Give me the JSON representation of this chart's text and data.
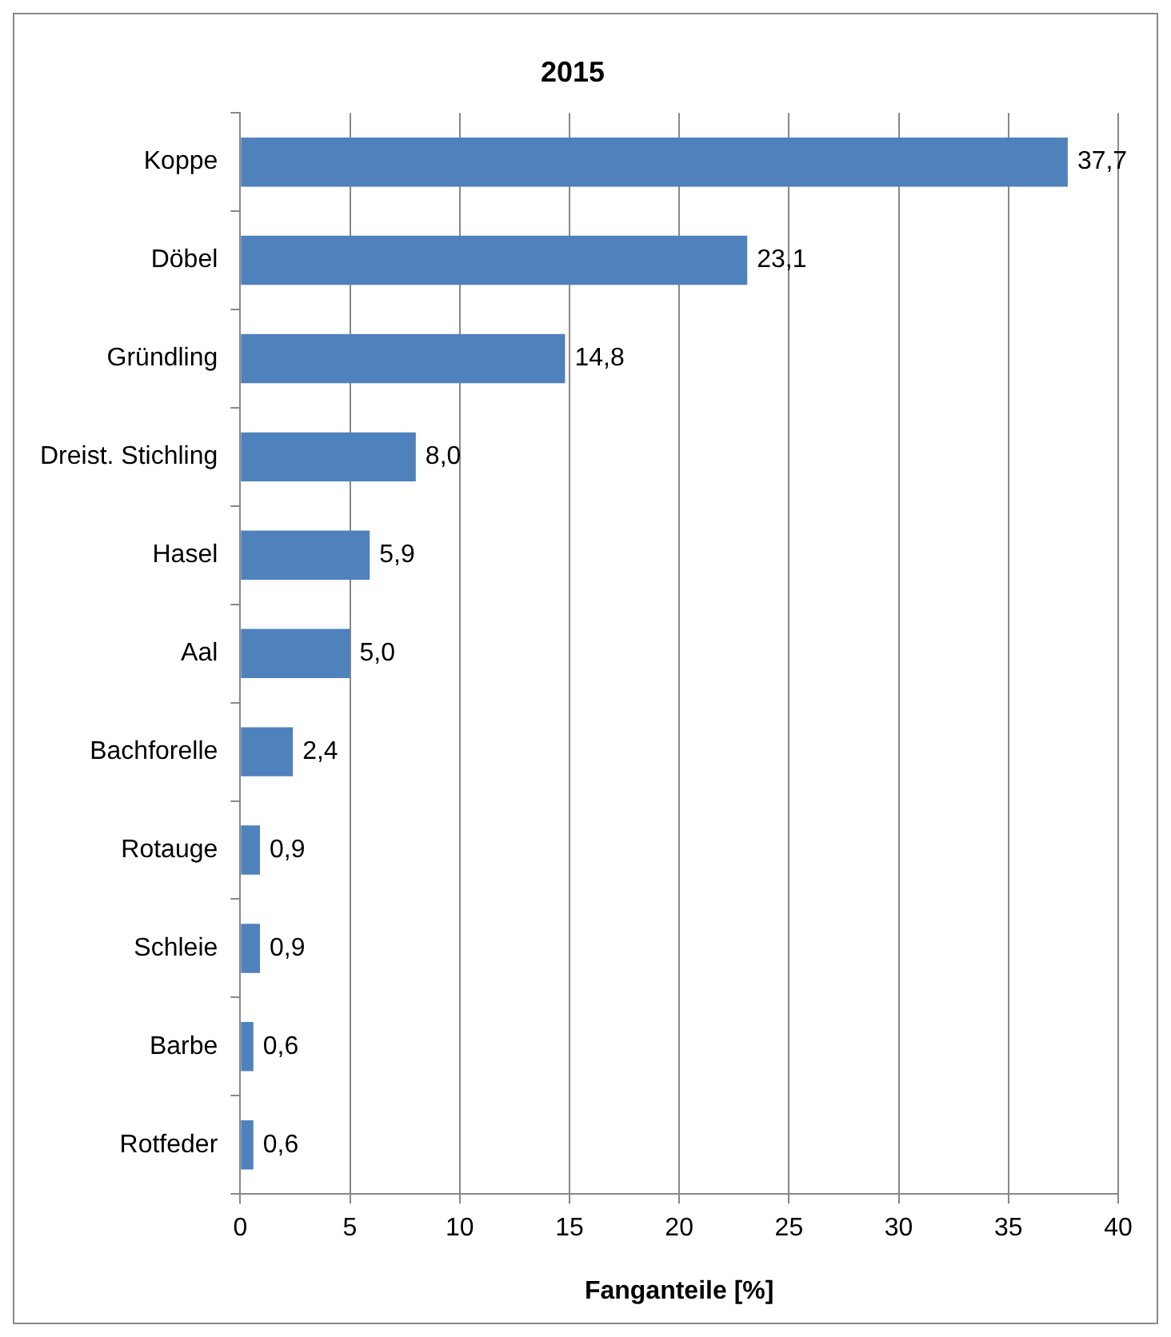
{
  "chart_data": {
    "type": "bar",
    "orientation": "horizontal",
    "title": "2015",
    "xlabel": "Fanganteile [%]",
    "categories": [
      "Koppe",
      "Döbel",
      "Gründling",
      "Dreist. Stichling",
      "Hasel",
      "Aal",
      "Bachforelle",
      "Rotauge",
      "Schleie",
      "Barbe",
      "Rotfeder"
    ],
    "values": [
      37.7,
      23.1,
      14.8,
      8.0,
      5.9,
      5.0,
      2.4,
      0.9,
      0.9,
      0.6,
      0.6
    ],
    "value_labels": [
      "37,7",
      "23,1",
      "14,8",
      "8,0",
      "5,9",
      "5,0",
      "2,4",
      "0,9",
      "0,9",
      "0,6",
      "0,6"
    ],
    "color": "#4f81bd",
    "xlim": [
      0,
      40
    ],
    "xticks": [
      0,
      5,
      10,
      15,
      20,
      25,
      30,
      35,
      40
    ],
    "grid": "x",
    "legend": false
  }
}
